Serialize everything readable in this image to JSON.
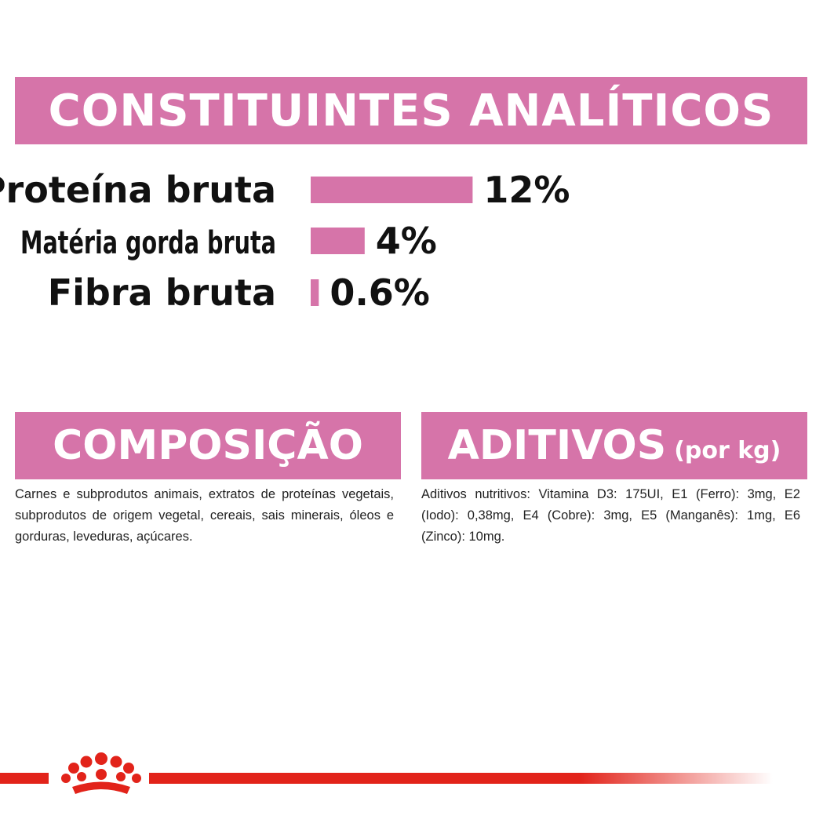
{
  "chart_data": {
    "type": "bar",
    "title": "CONSTITUINTES ANALÍTICOS",
    "categories": [
      "Proteína bruta",
      "Matéria gorda bruta",
      "Fibra bruta"
    ],
    "values": [
      12,
      4,
      0.6
    ],
    "value_labels": [
      "12%",
      "4%",
      "0.6%"
    ],
    "color": "#d674a9"
  },
  "composition": {
    "title": "COMPOSIÇÃO",
    "text": "Carnes e subprodutos animais, extratos de proteínas vegetais, subprodutos de origem vegetal, cereais, sais minerais, óleos e gorduras, leveduras, açúcares."
  },
  "additives": {
    "title": "ADITIVOS",
    "unit": "(por kg)",
    "text": "Aditivos nutritivos: Vitamina D3: 175UI, E1 (Ferro): 3mg, E2 (Iodo): 0,38mg, E4 (Cobre): 3mg, E5 (Manganês): 1mg, E6 (Zinco): 10mg."
  }
}
